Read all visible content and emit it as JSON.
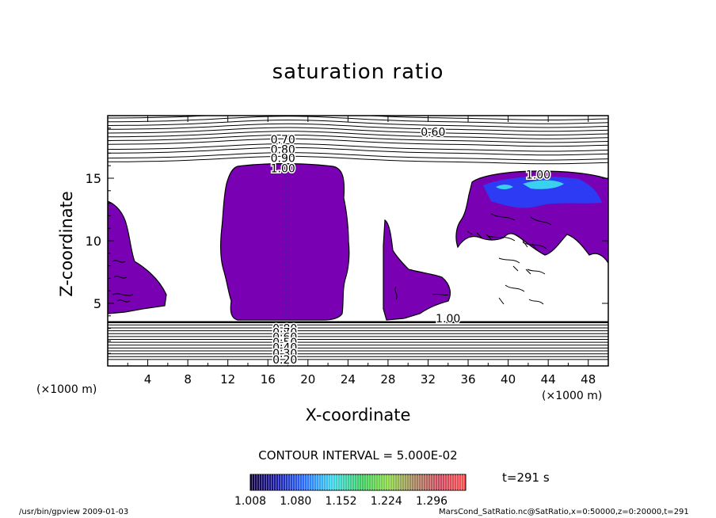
{
  "chart_data": {
    "type": "contour",
    "title": "saturation ratio",
    "xlabel": "X-coordinate",
    "ylabel": "Z-coordinate",
    "x_unit": "(×1000 m)",
    "y_unit": "(×1000 m)",
    "xlim": [
      0,
      50
    ],
    "ylim": [
      0,
      20
    ],
    "x_ticks": [
      4,
      8,
      12,
      16,
      20,
      24,
      28,
      32,
      36,
      40,
      44,
      48
    ],
    "y_ticks": [
      5,
      10,
      15
    ],
    "contour_labels": [
      {
        "text": "0.60",
        "x": 32.5,
        "z": 18.7
      },
      {
        "text": "0.70",
        "x": 17.5,
        "z": 18.1
      },
      {
        "text": "0.80",
        "x": 17.5,
        "z": 17.3
      },
      {
        "text": "0.90",
        "x": 17.5,
        "z": 16.6
      },
      {
        "text": "1.00",
        "x": 17.5,
        "z": 15.8
      },
      {
        "text": "1.00",
        "x": 43.0,
        "z": 15.3
      },
      {
        "text": "1.00",
        "x": 34.0,
        "z": 3.8
      },
      {
        "text": "0.80",
        "x": 17.7,
        "z": 3.0
      },
      {
        "text": "0.70",
        "x": 17.7,
        "z": 2.7
      },
      {
        "text": "0.60",
        "x": 17.7,
        "z": 2.3
      },
      {
        "text": "0.50",
        "x": 17.7,
        "z": 1.9
      },
      {
        "text": "0.40",
        "x": 17.7,
        "z": 1.5
      },
      {
        "text": "0.30",
        "x": 17.7,
        "z": 1.0
      },
      {
        "text": "0.20",
        "x": 17.7,
        "z": 0.5
      }
    ],
    "contour_interval": "CONTOUR INTERVAL = 5.000E-02",
    "colorbar": {
      "tick_labels": [
        "1.008",
        "1.080",
        "1.152",
        "1.224",
        "1.296"
      ],
      "range": [
        1.008,
        1.35
      ]
    },
    "time_label": "t=291 s"
  },
  "footer": {
    "left": "/usr/bin/gpview  2009-01-03",
    "right": "MarsCond_SatRatio.nc@SatRatio,x=0:50000,z=0:20000,t=291"
  },
  "colors": {
    "fill": "#7a00b4",
    "contour": "#000000",
    "blue_core": "#1e5cff",
    "cyan_core": "#37d0f0"
  }
}
